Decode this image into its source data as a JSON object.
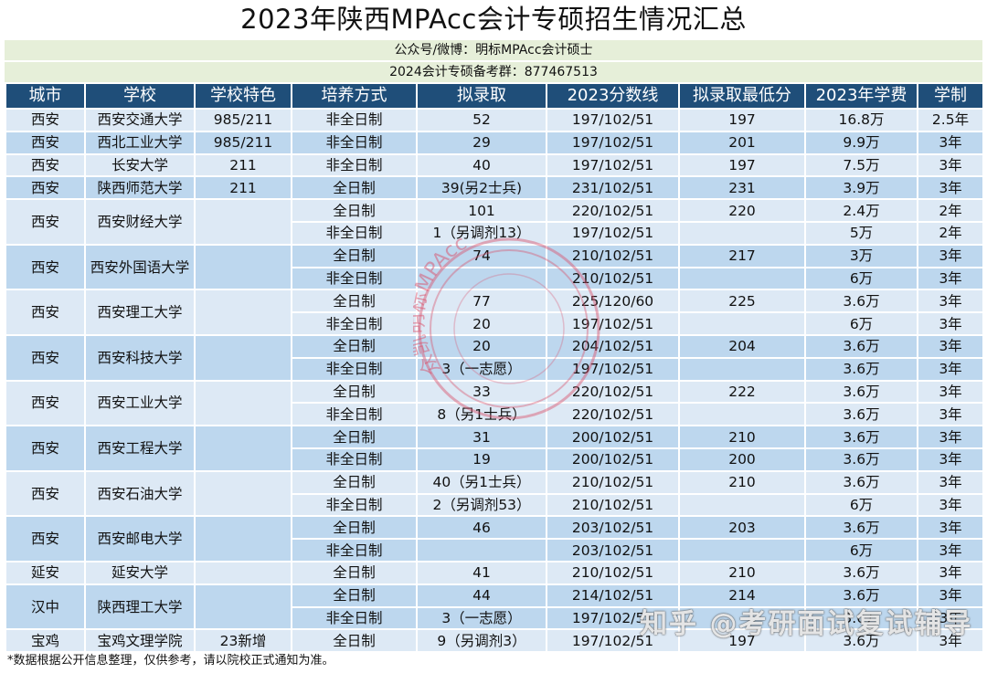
{
  "title": "2023年陕西MPAcc会计专硕招生情况汇总",
  "info": {
    "line1": "公众号/微博：明标MPAcc会计硕士",
    "line2": "2024会计专硕备考群：877467513"
  },
  "table": {
    "headers": [
      "城市",
      "学校",
      "学校特色",
      "培养方式",
      "拟录取",
      "2023分数线",
      "拟录取最低分",
      "2023年学费",
      "学制"
    ],
    "schools": [
      {
        "city": "西安",
        "name": "西安交通大学",
        "feature": "985/211",
        "shade": "light",
        "rows": [
          {
            "mode": "非全日制",
            "admit": "52",
            "line": "197/102/51",
            "min": "197",
            "fee": "16.8万",
            "years": "2.5年"
          }
        ]
      },
      {
        "city": "西安",
        "name": "西北工业大学",
        "feature": "985/211",
        "shade": "dark",
        "rows": [
          {
            "mode": "非全日制",
            "admit": "29",
            "line": "197/102/51",
            "min": "201",
            "fee": "9.9万",
            "years": "3年"
          }
        ]
      },
      {
        "city": "西安",
        "name": "长安大学",
        "feature": "211",
        "shade": "light",
        "rows": [
          {
            "mode": "非全日制",
            "admit": "40",
            "line": "197/102/51",
            "min": "197",
            "fee": "7.5万",
            "years": "3年"
          }
        ]
      },
      {
        "city": "西安",
        "name": "陕西师范大学",
        "feature": "211",
        "shade": "dark",
        "rows": [
          {
            "mode": "全日制",
            "admit": "39(另2士兵)",
            "line": "231/102/51",
            "min": "231",
            "fee": "3.9万",
            "years": "3年"
          }
        ]
      },
      {
        "city": "西安",
        "name": "西安财经大学",
        "feature": "",
        "shade": "light",
        "rows": [
          {
            "mode": "全日制",
            "admit": "101",
            "line": "220/102/51",
            "min": "220",
            "fee": "2.4万",
            "years": "2年"
          },
          {
            "mode": "非全日制",
            "admit": "1（另调剂13）",
            "line": "197/102/51",
            "min": "",
            "fee": "5万",
            "years": "2年"
          }
        ]
      },
      {
        "city": "西安",
        "name": "西安外国语大学",
        "feature": "",
        "shade": "dark",
        "rows": [
          {
            "mode": "全日制",
            "admit": "74",
            "line": "210/102/51",
            "min": "217",
            "fee": "3万",
            "years": "3年"
          },
          {
            "mode": "非全日制",
            "admit": "",
            "line": "210/102/51",
            "min": "",
            "fee": "6万",
            "years": "3年"
          }
        ]
      },
      {
        "city": "西安",
        "name": "西安理工大学",
        "feature": "",
        "shade": "light",
        "rows": [
          {
            "mode": "全日制",
            "admit": "77",
            "line": "225/120/60",
            "min": "225",
            "fee": "3.6万",
            "years": "3年"
          },
          {
            "mode": "非全日制",
            "admit": "20",
            "line": "197/102/51",
            "min": "",
            "fee": "6万",
            "years": "3年"
          }
        ]
      },
      {
        "city": "西安",
        "name": "西安科技大学",
        "feature": "",
        "shade": "dark",
        "rows": [
          {
            "mode": "全日制",
            "admit": "20",
            "line": "204/102/51",
            "min": "204",
            "fee": "3.6万",
            "years": "3年"
          },
          {
            "mode": "非全日制",
            "admit": "3（一志愿）",
            "line": "197/102/51",
            "min": "",
            "fee": "3.6万",
            "years": "3年"
          }
        ]
      },
      {
        "city": "西安",
        "name": "西安工业大学",
        "feature": "",
        "shade": "light",
        "rows": [
          {
            "mode": "全日制",
            "admit": "33",
            "line": "220/102/51",
            "min": "222",
            "fee": "3.6万",
            "years": "3年"
          },
          {
            "mode": "非全日制",
            "admit": "8（另1士兵）",
            "line": "220/102/51",
            "min": "",
            "fee": "3.6万",
            "years": "3年"
          }
        ]
      },
      {
        "city": "西安",
        "name": "西安工程大学",
        "feature": "",
        "shade": "dark",
        "rows": [
          {
            "mode": "全日制",
            "admit": "31",
            "line": "200/102/51",
            "min": "210",
            "fee": "3.6万",
            "years": "3年"
          },
          {
            "mode": "非全日制",
            "admit": "19",
            "line": "200/102/51",
            "min": "200",
            "fee": "3.6万",
            "years": "3年"
          }
        ]
      },
      {
        "city": "西安",
        "name": "西安石油大学",
        "feature": "",
        "shade": "light",
        "rows": [
          {
            "mode": "全日制",
            "admit": "40（另1士兵）",
            "line": "210/102/51",
            "min": "210",
            "fee": "3.6万",
            "years": "3年"
          },
          {
            "mode": "非全日制",
            "admit": "2（另调剂53）",
            "line": "210/102/51",
            "min": "",
            "fee": "6万",
            "years": "3年"
          }
        ]
      },
      {
        "city": "西安",
        "name": "西安邮电大学",
        "feature": "",
        "shade": "dark",
        "rows": [
          {
            "mode": "全日制",
            "admit": "46",
            "line": "203/102/51",
            "min": "203",
            "fee": "3.6万",
            "years": "3年"
          },
          {
            "mode": "非全日制",
            "admit": "",
            "line": "203/102/51",
            "min": "",
            "fee": "6万",
            "years": "3年"
          }
        ]
      },
      {
        "city": "延安",
        "name": "延安大学",
        "feature": "",
        "shade": "light",
        "rows": [
          {
            "mode": "全日制",
            "admit": "41",
            "line": "210/102/51",
            "min": "210",
            "fee": "3.6万",
            "years": "3年"
          }
        ]
      },
      {
        "city": "汉中",
        "name": "陕西理工大学",
        "feature": "",
        "shade": "dark",
        "rows": [
          {
            "mode": "全日制",
            "admit": "44",
            "line": "214/102/51",
            "min": "214",
            "fee": "3.6万",
            "years": "3年"
          },
          {
            "mode": "非全日制",
            "admit": "3（一志愿）",
            "line": "197/102/51",
            "min": "",
            "fee": "3.6万",
            "years": "3年"
          }
        ]
      },
      {
        "city": "宝鸡",
        "name": "宝鸡文理学院",
        "feature": "23新增",
        "shade": "light",
        "rows": [
          {
            "mode": "全日制",
            "admit": "9（另调剂3）",
            "line": "197/102/51",
            "min": "197",
            "fee": "3.6万",
            "years": "3年"
          }
        ]
      }
    ]
  },
  "footnote": "*数据根据公开信息整理，仅供参考，请以院校正式通知为准。",
  "watermarks": {
    "stamp_text": "众凯明标MPAcc",
    "zhihu": "知乎 @考研面试复试辅导"
  },
  "colors": {
    "header_bg": "#1f4e79",
    "row_light": "#dde9f5",
    "row_dark": "#bdd7ee",
    "info_bg": "#e6efd9",
    "stamp": "#d9506a"
  }
}
